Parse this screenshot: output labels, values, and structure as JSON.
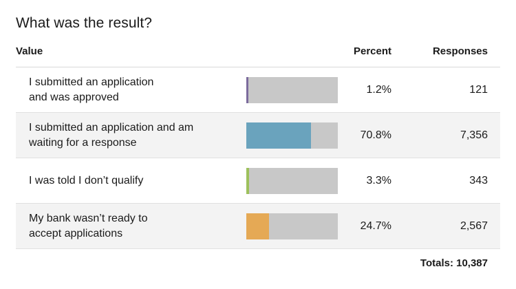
{
  "title": "What was the result?",
  "headers": {
    "value": "Value",
    "percent": "Percent",
    "responses": "Responses"
  },
  "totals_label": "Totals: 10,387",
  "chart_data": {
    "type": "bar",
    "title": "What was the result?",
    "categories": [
      "I submitted an application\nand was approved",
      "I submitted an application and am\nwaiting for a response",
      "I was told I don’t qualify",
      "My bank wasn’t ready to\naccept applications"
    ],
    "values": [
      1.2,
      70.8,
      3.3,
      24.7
    ],
    "ylim": [
      0,
      100
    ],
    "unit": "%",
    "percent_labels": [
      "1.2%",
      "70.8%",
      "3.3%",
      "24.7%"
    ],
    "responses": [
      "121",
      "7,356",
      "343",
      "2,567"
    ],
    "colors": [
      "#7b6a9c",
      "#6aa3bd",
      "#9dc05c",
      "#e5a955"
    ],
    "track_color": "#c8c8c8",
    "row_shading": [
      false,
      true,
      false,
      true
    ]
  }
}
